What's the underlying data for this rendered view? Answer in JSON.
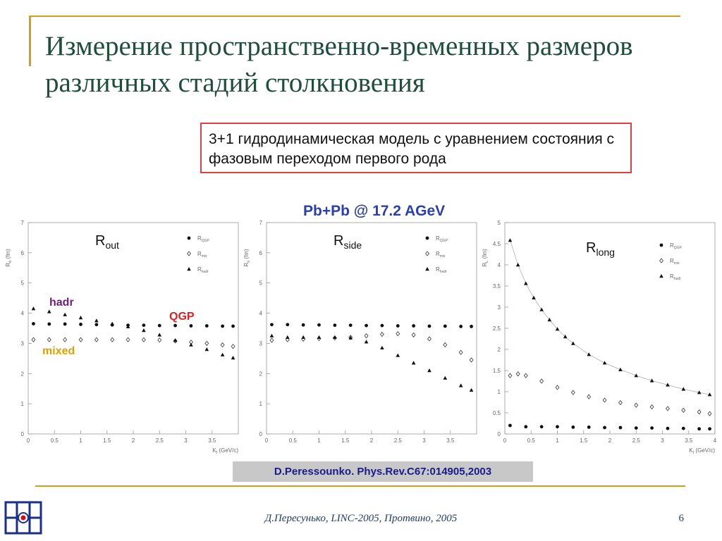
{
  "slide": {
    "title": "Измерение пространственно-временных размеров различных стадий столкновения",
    "model_note": "3+1 гидродинамическая модель с уравнением состояния с фазовым переходом первого рода",
    "heading": "Pb+Pb @ 17.2 AGeV",
    "citation": "D.Peressounko. Phys.Rev.C67:014905,2003",
    "footer": "Д.Пересунько, LINC-2005, Протвино, 2005",
    "page_number": "6"
  },
  "colors": {
    "accent_gold": "#d4a017",
    "title_green": "#1f4e3d",
    "box_border": "#e04040",
    "heading_blue": "#2a3fb0",
    "hadr_purple": "#6b1f7a",
    "qgp_red": "#e02020",
    "mixed_gold": "#e0a000",
    "logo_blue": "#1a2f8c"
  },
  "annotations": {
    "hadr": "hadr",
    "qgp": "QGP",
    "mixed": "mixed"
  },
  "chart_data": [
    {
      "type": "scatter",
      "panel_label": "R",
      "panel_label_sub": "out",
      "ylabel": "R",
      "ylabel_sub": "o",
      "ylabel_unit": "(fm)",
      "xlabel": "K",
      "xlabel_sub": "t",
      "xlabel_unit": "(GeV/c)",
      "xlim": [
        0,
        4
      ],
      "ylim": [
        0,
        7
      ],
      "xticks": [
        "0",
        "0.5",
        "1",
        "1.5",
        "2",
        "2.5",
        "3",
        "3.5"
      ],
      "yticks": [
        "0",
        "1",
        "2",
        "3",
        "4",
        "5",
        "6",
        "7"
      ],
      "legend": {
        "position": "top-right",
        "entries": [
          {
            "symbol": "circle",
            "name": "R",
            "sub": "QGP"
          },
          {
            "symbol": "diamond",
            "name": "R",
            "sub": "mix"
          },
          {
            "symbol": "triangle",
            "name": "R",
            "sub": "hadr"
          }
        ]
      },
      "series": [
        {
          "symbol": "circle",
          "x": [
            0.1,
            0.4,
            0.7,
            1.0,
            1.3,
            1.6,
            1.9,
            2.2,
            2.5,
            2.8,
            3.1,
            3.4,
            3.7,
            3.9
          ],
          "y": [
            3.65,
            3.64,
            3.64,
            3.63,
            3.62,
            3.61,
            3.6,
            3.6,
            3.59,
            3.59,
            3.58,
            3.58,
            3.57,
            3.57
          ]
        },
        {
          "symbol": "diamond",
          "x": [
            0.1,
            0.4,
            0.7,
            1.0,
            1.3,
            1.6,
            1.9,
            2.2,
            2.5,
            2.8,
            3.1,
            3.4,
            3.7,
            3.9
          ],
          "y": [
            3.12,
            3.12,
            3.12,
            3.12,
            3.12,
            3.12,
            3.12,
            3.12,
            3.11,
            3.08,
            3.04,
            3.0,
            2.95,
            2.9
          ]
        },
        {
          "symbol": "triangle",
          "x": [
            0.1,
            0.4,
            0.7,
            1.0,
            1.3,
            1.6,
            1.9,
            2.2,
            2.5,
            2.8,
            3.1,
            3.4,
            3.7,
            3.9
          ],
          "y": [
            4.15,
            4.05,
            3.95,
            3.85,
            3.75,
            3.65,
            3.55,
            3.43,
            3.28,
            3.1,
            2.95,
            2.8,
            2.62,
            2.52
          ]
        }
      ]
    },
    {
      "type": "scatter",
      "panel_label": "R",
      "panel_label_sub": "side",
      "ylabel": "R",
      "ylabel_sub": "s",
      "ylabel_unit": "(fm)",
      "xlabel": "",
      "xlabel_sub": "",
      "xlabel_unit": "",
      "xlim": [
        0,
        4
      ],
      "ylim": [
        0,
        7
      ],
      "xticks": [
        "0",
        "0.5",
        "1",
        "1.5",
        "2",
        "2.5",
        "3",
        "3.5"
      ],
      "yticks": [
        "0",
        "1",
        "2",
        "3",
        "4",
        "5",
        "6",
        "7"
      ],
      "legend": {
        "position": "top-right",
        "entries": [
          {
            "symbol": "circle",
            "name": "R",
            "sub": "QGP"
          },
          {
            "symbol": "diamond",
            "name": "R",
            "sub": "mix"
          },
          {
            "symbol": "triangle",
            "name": "R",
            "sub": "hadr"
          }
        ]
      },
      "series": [
        {
          "symbol": "circle",
          "x": [
            0.1,
            0.4,
            0.7,
            1.0,
            1.3,
            1.6,
            1.9,
            2.2,
            2.5,
            2.8,
            3.1,
            3.4,
            3.7,
            3.9
          ],
          "y": [
            3.62,
            3.62,
            3.61,
            3.61,
            3.6,
            3.6,
            3.59,
            3.59,
            3.58,
            3.58,
            3.57,
            3.57,
            3.56,
            3.56
          ]
        },
        {
          "symbol": "diamond",
          "x": [
            0.1,
            0.4,
            0.7,
            1.0,
            1.3,
            1.6,
            1.9,
            2.2,
            2.5,
            2.8,
            3.1,
            3.4,
            3.7,
            3.9
          ],
          "y": [
            3.1,
            3.12,
            3.14,
            3.16,
            3.18,
            3.2,
            3.25,
            3.3,
            3.32,
            3.28,
            3.15,
            2.95,
            2.7,
            2.45
          ]
        },
        {
          "symbol": "triangle",
          "x": [
            0.1,
            0.4,
            0.7,
            1.0,
            1.3,
            1.6,
            1.9,
            2.2,
            2.5,
            2.8,
            3.1,
            3.4,
            3.7,
            3.9
          ],
          "y": [
            3.25,
            3.2,
            3.2,
            3.2,
            3.2,
            3.18,
            3.05,
            2.85,
            2.6,
            2.35,
            2.1,
            1.85,
            1.6,
            1.45
          ]
        }
      ]
    },
    {
      "type": "scatter",
      "panel_label": "R",
      "panel_label_sub": "long",
      "ylabel": "R",
      "ylabel_sub": "L",
      "ylabel_unit": "(fm)",
      "xlabel": "K",
      "xlabel_sub": "t",
      "xlabel_unit": "(GeV/c)",
      "xlim": [
        0,
        4
      ],
      "ylim": [
        0,
        5
      ],
      "xticks": [
        "0",
        "0.5",
        "1",
        "1.5",
        "2",
        "2.5",
        "3",
        "3.5",
        "4"
      ],
      "yticks": [
        "0",
        "0.5",
        "1",
        "1.5",
        "2",
        "2.5",
        "3",
        "3.5",
        "4",
        "4.5",
        "5"
      ],
      "legend": {
        "position": "top-right",
        "entries": [
          {
            "symbol": "circle",
            "name": "R",
            "sub": "QGP"
          },
          {
            "symbol": "diamond",
            "name": "R",
            "sub": "mix"
          },
          {
            "symbol": "triangle",
            "name": "R",
            "sub": "hadr"
          }
        ]
      },
      "series": [
        {
          "symbol": "circle",
          "x": [
            0.1,
            0.4,
            0.7,
            1.0,
            1.3,
            1.6,
            1.9,
            2.2,
            2.5,
            2.8,
            3.1,
            3.4,
            3.7,
            3.9
          ],
          "y": [
            0.2,
            0.17,
            0.17,
            0.17,
            0.16,
            0.16,
            0.15,
            0.15,
            0.14,
            0.14,
            0.13,
            0.13,
            0.12,
            0.12
          ]
        },
        {
          "symbol": "diamond",
          "x": [
            0.1,
            0.25,
            0.4,
            0.7,
            1.0,
            1.3,
            1.6,
            1.9,
            2.2,
            2.5,
            2.8,
            3.1,
            3.4,
            3.7,
            3.9
          ],
          "y": [
            1.38,
            1.42,
            1.38,
            1.25,
            1.1,
            0.98,
            0.88,
            0.8,
            0.74,
            0.68,
            0.64,
            0.6,
            0.56,
            0.52,
            0.48
          ]
        },
        {
          "symbol": "triangle",
          "x": [
            0.1,
            0.25,
            0.4,
            0.55,
            0.7,
            0.85,
            1.0,
            1.15,
            1.3,
            1.6,
            1.9,
            2.2,
            2.5,
            2.8,
            3.1,
            3.4,
            3.7,
            3.9
          ],
          "y": [
            4.58,
            4.0,
            3.56,
            3.22,
            2.94,
            2.7,
            2.48,
            2.3,
            2.14,
            1.88,
            1.68,
            1.52,
            1.38,
            1.26,
            1.16,
            1.06,
            0.98,
            0.93
          ]
        }
      ]
    }
  ]
}
